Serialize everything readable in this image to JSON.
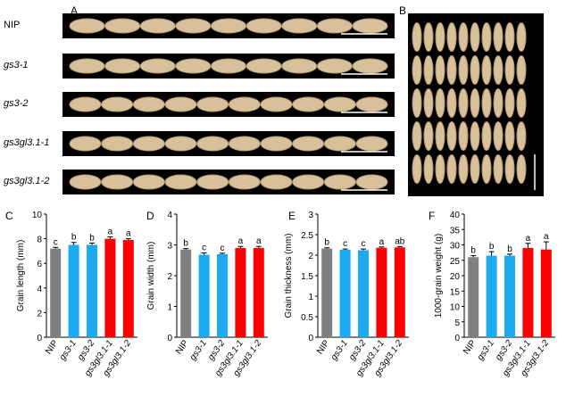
{
  "panel_a": {
    "letter": "A",
    "rows": [
      {
        "label": "NIP",
        "italic": false,
        "grain_count": 9
      },
      {
        "label": "gs3-1",
        "italic": true,
        "grain_count": 9
      },
      {
        "label": "gs3-2",
        "italic": true,
        "grain_count": 10
      },
      {
        "label": "gs3gl3.1-1",
        "italic": true,
        "grain_count": 10
      },
      {
        "label": "gs3gl3.1-2",
        "italic": true,
        "grain_count": 10
      }
    ]
  },
  "panel_b": {
    "letter": "B",
    "rows": 5,
    "grains_per_row": 10
  },
  "colors": {
    "NIP": "#808080",
    "gs3": "#1aabf0",
    "gs3gl3.1": "#ff0000",
    "grain": "#d8c09a",
    "grain_dark": "#b3976e"
  },
  "chart_data": [
    {
      "type": "bar",
      "letter": "C",
      "categories": [
        "NIP",
        "gs3-1",
        "gs3-2",
        "gs3gl3.1-1",
        "gs3gl3.1-2"
      ],
      "values": [
        7.2,
        7.5,
        7.5,
        8.0,
        7.9
      ],
      "errors": [
        0.1,
        0.2,
        0.15,
        0.15,
        0.1
      ],
      "letters": [
        "c",
        "b",
        "b",
        "a",
        "a"
      ],
      "ylabel": "Grain length (mm)",
      "ylim": [
        0,
        10
      ],
      "yticks": [
        "0",
        "2",
        "4",
        "6",
        "8",
        "10"
      ]
    },
    {
      "type": "bar",
      "letter": "D",
      "categories": [
        "NIP",
        "gs3-1",
        "gs3-2",
        "gs3gl3.1-1",
        "gs3gl3.1-2"
      ],
      "values": [
        2.85,
        2.68,
        2.7,
        2.9,
        2.9
      ],
      "errors": [
        0.03,
        0.06,
        0.03,
        0.05,
        0.05
      ],
      "letters": [
        "b",
        "c",
        "c",
        "a",
        "a"
      ],
      "ylabel": "Grain width (mm)",
      "ylim": [
        0,
        4
      ],
      "yticks": [
        "0",
        "1",
        "2",
        "3",
        "4"
      ]
    },
    {
      "type": "bar",
      "letter": "E",
      "categories": [
        "NIP",
        "gs3-1",
        "gs3-2",
        "gs3gl3.1-1",
        "gs3gl3.1-2"
      ],
      "values": [
        2.16,
        2.13,
        2.12,
        2.18,
        2.19
      ],
      "errors": [
        0.02,
        0.02,
        0.03,
        0.02,
        0.02
      ],
      "letters": [
        "b",
        "c",
        "c",
        "a",
        "ab"
      ],
      "ylabel": "Grain thickness (mm)",
      "ylim": [
        0,
        3
      ],
      "yticks": [
        "0",
        "0.5",
        "1",
        "1.5",
        "2",
        "2.5",
        "3"
      ]
    },
    {
      "type": "bar",
      "letter": "F",
      "categories": [
        "NIP",
        "gs3-1",
        "gs3-2",
        "gs3gl3.1-1",
        "gs3gl3.1-2"
      ],
      "values": [
        26,
        26.5,
        26.5,
        29,
        28.5
      ],
      "errors": [
        0.5,
        1.3,
        0.5,
        1.5,
        2.5
      ],
      "letters": [
        "b",
        "b",
        "b",
        "a",
        "a"
      ],
      "ylabel": "1000-grain weight (g)",
      "ylim": [
        0,
        40
      ],
      "yticks": [
        "0",
        "5",
        "10",
        "15",
        "20",
        "25",
        "30",
        "35",
        "40"
      ]
    }
  ]
}
